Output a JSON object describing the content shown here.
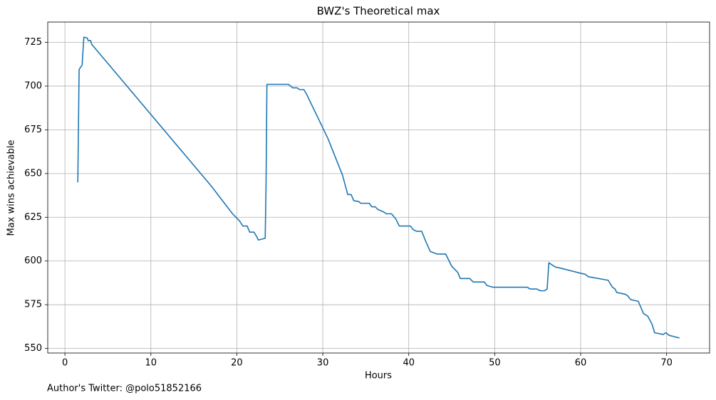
{
  "chart_data": {
    "type": "line",
    "title": "BWZ's Theoretical max",
    "xlabel": "Hours",
    "ylabel": "Max wins achievable",
    "footnote": "Author's Twitter: @polo51852166",
    "color": "#1f77b4",
    "grid": true,
    "xlim": [
      -2,
      75
    ],
    "ylim": [
      547.4,
      736.6
    ],
    "xticks": [
      0,
      10,
      20,
      30,
      40,
      50,
      60,
      70
    ],
    "yticks": [
      550,
      575,
      600,
      625,
      650,
      675,
      700,
      725
    ],
    "x": [
      1.5,
      1.65,
      2.0,
      2.2,
      2.6,
      2.7,
      3.0,
      3.1,
      17,
      19.5,
      19.9,
      20.3,
      20.7,
      21.2,
      21.5,
      22,
      22.3,
      22.5,
      23.3,
      23.4,
      23.5,
      26,
      26.5,
      27,
      27.3,
      27.8,
      28.1,
      30.6,
      32.3,
      32.9,
      33.3,
      33.6,
      34.2,
      34.4,
      35.4,
      35.7,
      36.1,
      36.4,
      37.1,
      37.4,
      38,
      38.5,
      38.9,
      40.2,
      40.5,
      40.9,
      41.5,
      42,
      42.5,
      43,
      43.3,
      44.3,
      44.7,
      45,
      45.7,
      46,
      47.1,
      47.5,
      48.8,
      49.1,
      49.8,
      53.8,
      54.1,
      54.9,
      55.3,
      55.8,
      56.1,
      56.3,
      56.6,
      57.1,
      57.6,
      60,
      60.5,
      60.9,
      63.2,
      63.7,
      64,
      64.2,
      65.2,
      65.5,
      65.8,
      66.2,
      66.7,
      67.3,
      67.8,
      68.3,
      68.6,
      69.6,
      69.9,
      70.3,
      71.5
    ],
    "values": [
      645,
      709.5,
      712,
      728,
      727.5,
      726,
      726,
      724,
      643,
      627,
      625,
      623,
      620,
      620,
      616.5,
      616.5,
      614,
      612,
      613,
      644,
      701,
      701,
      699,
      699,
      698,
      698,
      695.5,
      670,
      649,
      638,
      638,
      634.5,
      634,
      633,
      633,
      631,
      631,
      629.5,
      628,
      627,
      627,
      624,
      620,
      620,
      618,
      617,
      617,
      611,
      605.5,
      604.5,
      604,
      604,
      600,
      597,
      593.5,
      590,
      590,
      588,
      588,
      586,
      585,
      585,
      584,
      584,
      583,
      583,
      584,
      599,
      598,
      596.5,
      596,
      593,
      592.5,
      591,
      589,
      585,
      584,
      582,
      581,
      580,
      578,
      577.5,
      577,
      570,
      568.5,
      564,
      559,
      558,
      559,
      557.5,
      556
    ]
  }
}
